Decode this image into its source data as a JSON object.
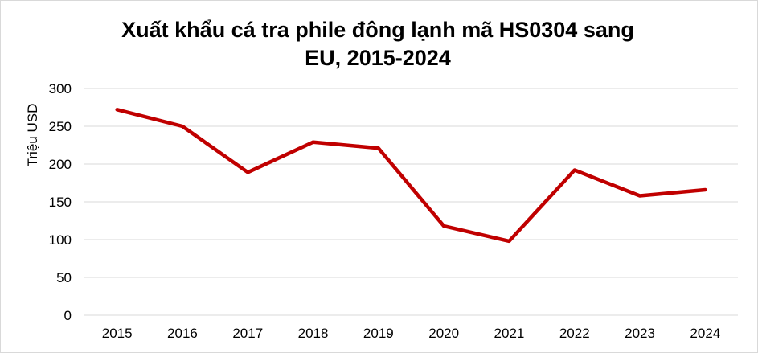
{
  "chart_data": {
    "type": "line",
    "title_line1": "Xuất khẩu cá tra phile đông lạnh mã HS0304 sang",
    "title_line2": "EU, 2015-2024",
    "ylabel": "Triệu USD",
    "xlabel": "",
    "ylim": [
      0,
      300
    ],
    "yticks": [
      0,
      50,
      100,
      150,
      200,
      250,
      300
    ],
    "ytick_labels": [
      "0",
      "50",
      "100",
      "150",
      "200",
      "250",
      "300"
    ],
    "grid": true,
    "legend": "none",
    "categories": [
      "2015",
      "2016",
      "2017",
      "2018",
      "2019",
      "2020",
      "2021",
      "2022",
      "2023",
      "2024"
    ],
    "series": [
      {
        "values": [
          272,
          250,
          189,
          229,
          221,
          118,
          98,
          192,
          158,
          166
        ],
        "color": "#c00000"
      }
    ]
  }
}
